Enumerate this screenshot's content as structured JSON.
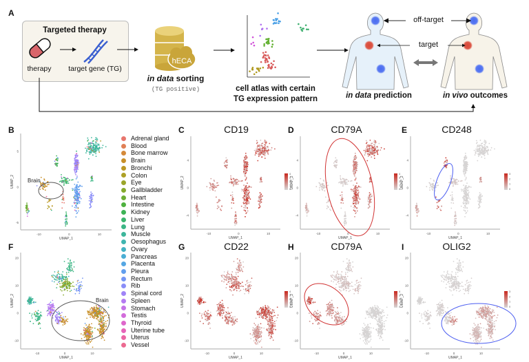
{
  "panel_labels": {
    "A": "A",
    "B": "B",
    "C": "C",
    "D": "D",
    "E": "E",
    "F": "F",
    "G": "G",
    "H": "H",
    "I": "I"
  },
  "workflow": {
    "box_title": "Targeted therapy",
    "therapy_label": "therapy",
    "target_gene_label": "target gene (TG)",
    "database_badge": "hECA",
    "sorting_italic": "in data",
    "sorting_rest": " sorting",
    "sorting_note": "(TG positive)",
    "atlas_line1": "cell atlas with certain",
    "atlas_line2": "TG expression pattern",
    "prediction_italic": "in data",
    "prediction_rest": " prediction",
    "outcome_italic": "in vivo",
    "outcome_rest": " outcomes",
    "off_target_label": "off-target",
    "target_label": "target"
  },
  "colors": {
    "target": "#d9493a",
    "off_target": "#4a6cf0",
    "box_bg": "#f7f4ec",
    "body_blue": "#e6f1fa",
    "body_beige": "#f7f3e9",
    "high": "#c8281e",
    "low": "#d6d6d6",
    "ellipse_red": "#d03030",
    "ellipse_blue": "#4a5cf0"
  },
  "legend": [
    {
      "label": "Adrenal gland",
      "color": "#E8766D"
    },
    {
      "label": "Blood",
      "color": "#E07F55"
    },
    {
      "label": "Bone marrow",
      "color": "#D58A3A"
    },
    {
      "label": "Brain",
      "color": "#C8902A"
    },
    {
      "label": "Bronchi",
      "color": "#BC9824"
    },
    {
      "label": "Colon",
      "color": "#ADA025"
    },
    {
      "label": "Eye",
      "color": "#9BA52A"
    },
    {
      "label": "Gallbladder",
      "color": "#86AA2E"
    },
    {
      "label": "Heart",
      "color": "#6DAE35"
    },
    {
      "label": "Intestine",
      "color": "#4FB13F"
    },
    {
      "label": "Kidney",
      "color": "#3DB356"
    },
    {
      "label": "Liver",
      "color": "#3BB56E"
    },
    {
      "label": "Lung",
      "color": "#3BB685"
    },
    {
      "label": "Muscle",
      "color": "#3DB69B"
    },
    {
      "label": "Oesophagus",
      "color": "#3FB5B0"
    },
    {
      "label": "Ovary",
      "color": "#43B2C3"
    },
    {
      "label": "Pancreas",
      "color": "#4AAED4"
    },
    {
      "label": "Placenta",
      "color": "#55A7E3"
    },
    {
      "label": "Pleura",
      "color": "#629FEE"
    },
    {
      "label": "Rectum",
      "color": "#7596F5"
    },
    {
      "label": "Rib",
      "color": "#8A8DF8"
    },
    {
      "label": "Spinal cord",
      "color": "#A084F7"
    },
    {
      "label": "Spleen",
      "color": "#B47BF2"
    },
    {
      "label": "Stomach",
      "color": "#C573E8"
    },
    {
      "label": "Testis",
      "color": "#D36CDB"
    },
    {
      "label": "Thyroid",
      "color": "#DE67CB"
    },
    {
      "label": "Uterine tube",
      "color": "#E665B9"
    },
    {
      "label": "Uterus",
      "color": "#EB66A5"
    },
    {
      "label": "Vessel",
      "color": "#EC6A91"
    }
  ],
  "annotations": {
    "brain_B": "Brain",
    "brain_F": "Brain"
  },
  "axes": {
    "xlabel": "UMAP_1",
    "ylabel": "UMAP_2"
  },
  "umap_top": {
    "xlim": [
      -16,
      14
    ],
    "ylim": [
      -6,
      7.5
    ],
    "xticks": [
      -10,
      0,
      10
    ],
    "yticks": [
      -4,
      0,
      4
    ],
    "yticks_B": [
      -5,
      0,
      5
    ],
    "clusters": [
      {
        "c": [
          8,
          5.5
        ],
        "s": [
          2.2,
          0.8
        ],
        "n": 160,
        "tissue": 13
      },
      {
        "c": [
          2.3,
          3.2
        ],
        "s": [
          0.7,
          1.2
        ],
        "n": 110,
        "tissue": 21
      },
      {
        "c": [
          2.5,
          -1.3
        ],
        "s": [
          1.0,
          1.6
        ],
        "n": 150,
        "tissue": 18
      },
      {
        "c": [
          7.2,
          -1.8
        ],
        "s": [
          0.5,
          0.8
        ],
        "n": 40,
        "tissue": 20
      },
      {
        "c": [
          7.5,
          1.2
        ],
        "s": [
          0.3,
          0.5
        ],
        "n": 18,
        "tissue": 12
      },
      {
        "c": [
          -1.5,
          1.0
        ],
        "s": [
          1.5,
          0.5
        ],
        "n": 50,
        "tissue": 11
      },
      {
        "c": [
          -4.2,
          3.5
        ],
        "s": [
          0.5,
          0.6
        ],
        "n": 25,
        "tissue": 10
      },
      {
        "c": [
          -8.5,
          0.3
        ],
        "s": [
          1.3,
          0.6
        ],
        "n": 45,
        "tissue": 3
      },
      {
        "c": [
          -13.8,
          -3.2
        ],
        "s": [
          0.4,
          0.9
        ],
        "n": 30,
        "tissue": 8
      },
      {
        "c": [
          -1.0,
          -4.6
        ],
        "s": [
          0.3,
          0.7
        ],
        "n": 25,
        "tissue": 11
      },
      {
        "c": [
          -6.5,
          -2.5
        ],
        "s": [
          0.8,
          0.9
        ],
        "n": 15,
        "tissue": 4
      },
      {
        "c": [
          -2.0,
          -1.5
        ],
        "s": [
          0.5,
          0.8
        ],
        "n": 15,
        "tissue": 0
      }
    ],
    "expr": {
      "C": [
        0.75,
        0.8,
        0.85,
        0.8,
        0.6,
        0.6,
        0.55,
        0.5,
        0.45,
        0.5,
        0.5,
        0.7
      ],
      "D": [
        0.75,
        0.6,
        0.75,
        0.55,
        0.6,
        0.1,
        0.1,
        0.1,
        0.25,
        0.05,
        0.1,
        0.5
      ],
      "E": [
        0.02,
        0.02,
        0.02,
        0.02,
        0.5,
        0.1,
        0.85,
        0.05,
        0.35,
        0.15,
        0.8,
        0.05
      ]
    }
  },
  "umap_bottom": {
    "xlim": [
      -16,
      17
    ],
    "ylim": [
      -13,
      22
    ],
    "xticks": [
      -10,
      0,
      10
    ],
    "yticks": [
      -10,
      0,
      10,
      20
    ],
    "clusters": [
      {
        "c": [
          -12.5,
          4.5
        ],
        "s": [
          0.9,
          1.0
        ],
        "n": 90,
        "tissue": 13
      },
      {
        "c": [
          -10,
          -1
        ],
        "s": [
          1.8,
          2.2
        ],
        "n": 60,
        "tissue": 12
      },
      {
        "c": [
          -5,
          1.5
        ],
        "s": [
          1.2,
          2.0
        ],
        "n": 80,
        "tissue": 22
      },
      {
        "c": [
          -2.5,
          -2
        ],
        "s": [
          1.3,
          2.0
        ],
        "n": 60,
        "tissue": 21
      },
      {
        "c": [
          0.5,
          10.5
        ],
        "s": [
          2.0,
          2.0
        ],
        "n": 110,
        "tissue": 7
      },
      {
        "c": [
          -2,
          13
        ],
        "s": [
          2.5,
          1.5
        ],
        "n": 60,
        "tissue": 13
      },
      {
        "c": [
          2,
          17
        ],
        "s": [
          1.2,
          2.0
        ],
        "n": 40,
        "tissue": 12
      },
      {
        "c": [
          5,
          9.5
        ],
        "s": [
          1.5,
          2.5
        ],
        "n": 35,
        "tissue": 19
      },
      {
        "c": [
          -0.5,
          -2.5
        ],
        "s": [
          1.3,
          1.0
        ],
        "n": 35,
        "tissue": 3
      },
      {
        "c": [
          11.5,
          0
        ],
        "s": [
          2.5,
          1.8
        ],
        "n": 220,
        "tissue": 3
      },
      {
        "c": [
          13.5,
          -5
        ],
        "s": [
          1.2,
          2.8
        ],
        "n": 120,
        "tissue": 3
      },
      {
        "c": [
          8.5,
          -7.5
        ],
        "s": [
          1.4,
          2.5
        ],
        "n": 160,
        "tissue": 3
      }
    ],
    "expr": {
      "G": [
        0.9,
        0.6,
        0.7,
        0.7,
        0.75,
        0.5,
        0.55,
        0.6,
        0.6,
        0.8,
        0.75,
        0.45
      ],
      "H": [
        0.9,
        0.5,
        0.45,
        0.45,
        0.15,
        0.15,
        0.1,
        0.2,
        0.3,
        0.02,
        0.02,
        0.02
      ],
      "I": [
        0.02,
        0.05,
        0.05,
        0.05,
        0.03,
        0.03,
        0.02,
        0.05,
        0.45,
        0.35,
        0.25,
        0.2
      ]
    }
  },
  "features": {
    "C": {
      "gene": "CD19",
      "scale": [
        "4",
        "3",
        "2",
        "1",
        "0"
      ]
    },
    "D": {
      "gene": "CD79A",
      "scale": [
        "4",
        "3",
        "2",
        "1",
        "0"
      ]
    },
    "E": {
      "gene": "CD248",
      "scale": [
        "3",
        "2",
        "1",
        "0"
      ]
    },
    "G": {
      "gene": "CD22",
      "scale": [
        "4",
        "3",
        "2",
        "1",
        "0"
      ]
    },
    "H": {
      "gene": "CD79A",
      "scale": [
        "4",
        "3",
        "2",
        "1",
        "0"
      ]
    },
    "I": {
      "gene": "OLIG2",
      "scale": [
        "3",
        "2",
        "1",
        "0"
      ]
    }
  }
}
